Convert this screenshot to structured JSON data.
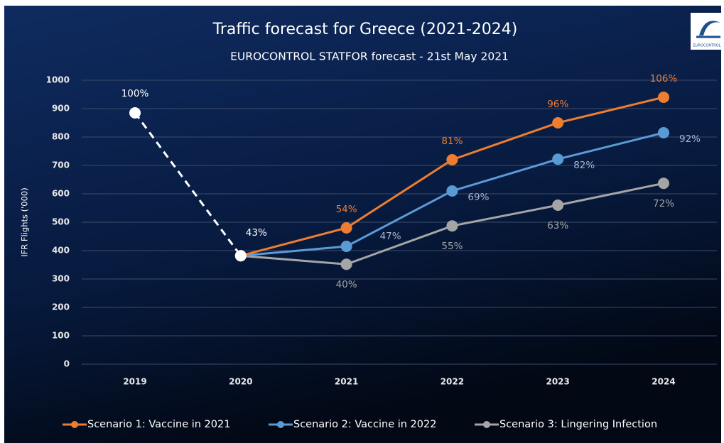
{
  "chart_data": {
    "type": "line",
    "title": "Traffic forecast for Greece (2021-2024)",
    "subtitle": "EUROCONTROL STATFOR forecast  - 21st May 2021",
    "y_label": "IFR Flights ('000)",
    "logo_text": "EUROCONTROL",
    "categories": [
      "2019",
      "2020",
      "2021",
      "2022",
      "2023",
      "2024"
    ],
    "ylim": [
      0,
      1000
    ],
    "yticks": [
      0,
      100,
      200,
      300,
      400,
      500,
      600,
      700,
      800,
      900,
      1000
    ],
    "grid": true,
    "legend": "bottom",
    "series": [
      {
        "color": "#ffffff",
        "dashed": true,
        "values": [
          885,
          382,
          null,
          null,
          null,
          null
        ],
        "point_labels": [
          "100%",
          "43%",
          null,
          null,
          null,
          null
        ]
      },
      {
        "name": "Scenario 1: Vaccine in 2021",
        "color": "#ed7d31",
        "values": [
          null,
          382,
          480,
          720,
          850,
          940
        ],
        "point_labels": [
          null,
          null,
          "54%",
          "81%",
          "96%",
          "106%"
        ]
      },
      {
        "name": "Scenario 2: Vaccine in 2022",
        "color": "#5b9bd5",
        "values": [
          null,
          382,
          415,
          610,
          722,
          815
        ],
        "point_labels": [
          null,
          null,
          "47%",
          "69%",
          "82%",
          "92%"
        ]
      },
      {
        "name": "Scenario 3: Lingering Infection",
        "color": "#a5a5a5",
        "values": [
          null,
          382,
          352,
          487,
          560,
          637
        ],
        "point_labels": [
          null,
          null,
          "40%",
          "55%",
          "63%",
          "72%"
        ]
      }
    ]
  }
}
